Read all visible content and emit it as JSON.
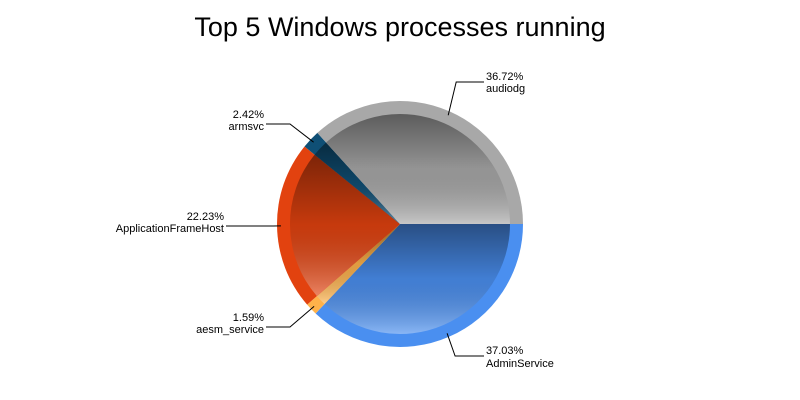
{
  "chart_data": {
    "type": "pie",
    "title": "Top 5 Windows processes running",
    "slices": [
      {
        "name": "AdminService",
        "value": 37.03,
        "label": "37.03%",
        "color": "#4a8ff0"
      },
      {
        "name": "aesm_service",
        "value": 1.59,
        "label": "1.59%",
        "color": "#ffb24a"
      },
      {
        "name": "ApplicationFrameHost",
        "value": 22.23,
        "label": "22.23%",
        "color": "#e2420f"
      },
      {
        "name": "armsvc",
        "value": 2.42,
        "label": "2.42%",
        "color": "#0f4f75"
      },
      {
        "name": "audiodg",
        "value": 36.72,
        "label": "36.72%",
        "color": "#a8a8a8"
      }
    ]
  }
}
